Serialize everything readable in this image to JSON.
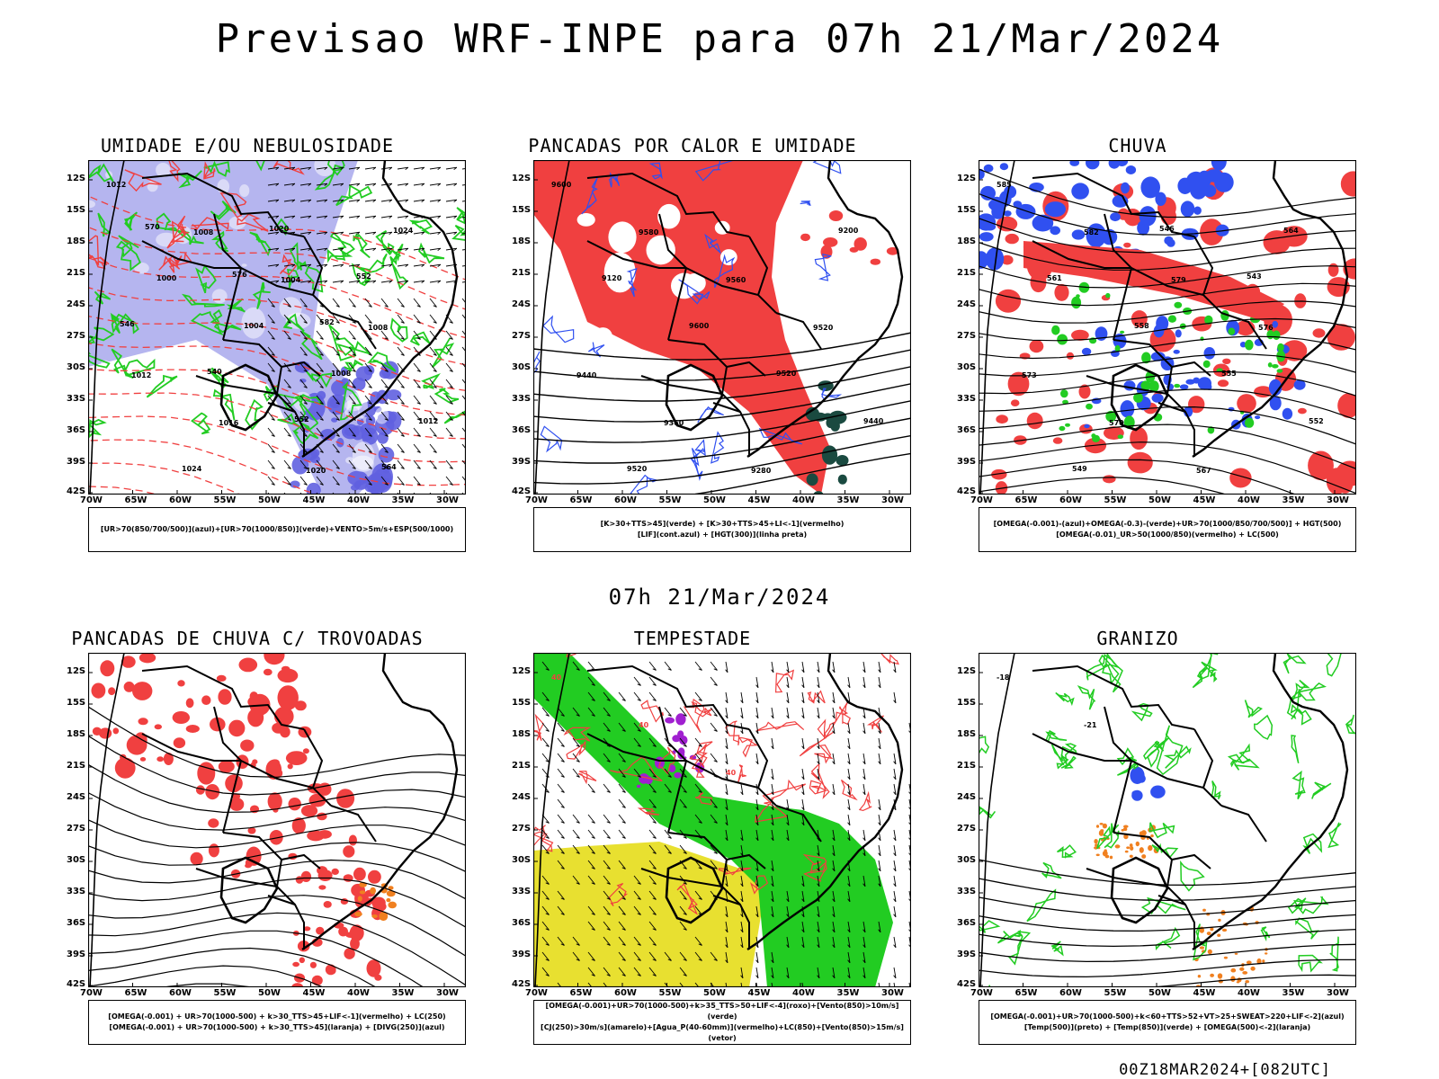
{
  "title": "Previsao WRF-INPE  para 07h 21/Mar/2024",
  "mid_title": "07h 21/Mar/2024",
  "footer": "00Z18MAR2024+[082UTC]",
  "axes": {
    "lat": [
      "12S",
      "15S",
      "18S",
      "21S",
      "24S",
      "27S",
      "30S",
      "33S",
      "36S",
      "39S",
      "42S"
    ],
    "lon": [
      "70W",
      "65W",
      "60W",
      "55W",
      "50W",
      "45W",
      "40W",
      "35W",
      "30W"
    ]
  },
  "colors": {
    "red": "#f04040",
    "blue": "#3050f0",
    "green": "#22cc22",
    "lavender": "#a8a8ec",
    "yellow": "#e8e030",
    "purple": "#a020d0",
    "orange": "#f08020",
    "darkteal": "#1a4a40"
  },
  "panels": [
    {
      "id": "umidade",
      "title": "UMIDADE E/OU NEBULOSIDADE",
      "legend": [
        "[UR>70(850/700/500)](azul)+[UR>70(1000/850)](verde)+VENTO>5m/s+ESP(500/1000)"
      ],
      "labels": [
        "1012",
        "1008",
        "1004",
        "1008",
        "1012",
        "1016",
        "1020",
        "1024",
        "1000",
        "1004",
        "1008",
        "1012",
        "1024",
        "1020",
        "552",
        "546",
        "540",
        "552",
        "564",
        "570",
        "576",
        "582"
      ]
    },
    {
      "id": "pancadas",
      "title": "PANCADAS POR CALOR E UMIDADE",
      "legend": [
        "[K>30+TTS>45](verde) + [K>30+TTS>45+LI<-1](vermelho)",
        "[LIF](cont.azul) + [HGT(300)](linha preta)"
      ],
      "labels": [
        "9600",
        "9580",
        "9560",
        "9520",
        "9440",
        "9360",
        "9280",
        "9200",
        "9120",
        "9600",
        "9520",
        "9440",
        "9520"
      ]
    },
    {
      "id": "chuva",
      "title": "CHUVA",
      "legend": [
        "[OMEGA(-0.001)-(azul)+OMEGA(-0.3)-(verde)+UR>70(1000/850/700/500)] + HGT(500)",
        "[OMEGA(-0.01)_UR>50(1000/850)(vermelho) + LC(500)"
      ],
      "labels": [
        "585",
        "582",
        "579",
        "576",
        "573",
        "570",
        "567",
        "564",
        "561",
        "558",
        "555",
        "552",
        "549",
        "546",
        "543"
      ]
    },
    {
      "id": "trovoadas",
      "title": "PANCADAS DE CHUVA C/ TROVOADAS",
      "legend": [
        "[OMEGA(-0.001) + UR>70(1000-500) + k>30_TTS>45+LIF<-1](vermelho) + LC(250)",
        "[OMEGA(-0.001) + UR>70(1000-500) + k>30_TTS>45](laranja) + [DIVG(250)](azul)"
      ],
      "labels": []
    },
    {
      "id": "tempestade",
      "title": "TEMPESTADE",
      "legend": [
        "[OMEGA(-0.001)+UR>70(1000-500)+k>35_TTS>50+LIF<-4](roxo)+[Vento(850)>10m/s](verde)",
        "[CJ(250)>30m/s](amarelo)+[Agua_P(40-60mm)](vermelho)+LC(850)+[Vento(850)>15m/s](vetor)"
      ],
      "labels": [
        "40",
        "40",
        "40"
      ]
    },
    {
      "id": "granizo",
      "title": "GRANIZO",
      "legend": [
        "[OMEGA(-0.001)+UR>70(1000-500)+k<60+TTS>52+VT>25+SWEAT>220+LIF<-2](azul)",
        "[Temp(500)](preto) + [Temp(850)](verde) + [OMEGA(500)<-2](laranja)"
      ],
      "labels": [
        "-18",
        "-21"
      ]
    }
  ]
}
